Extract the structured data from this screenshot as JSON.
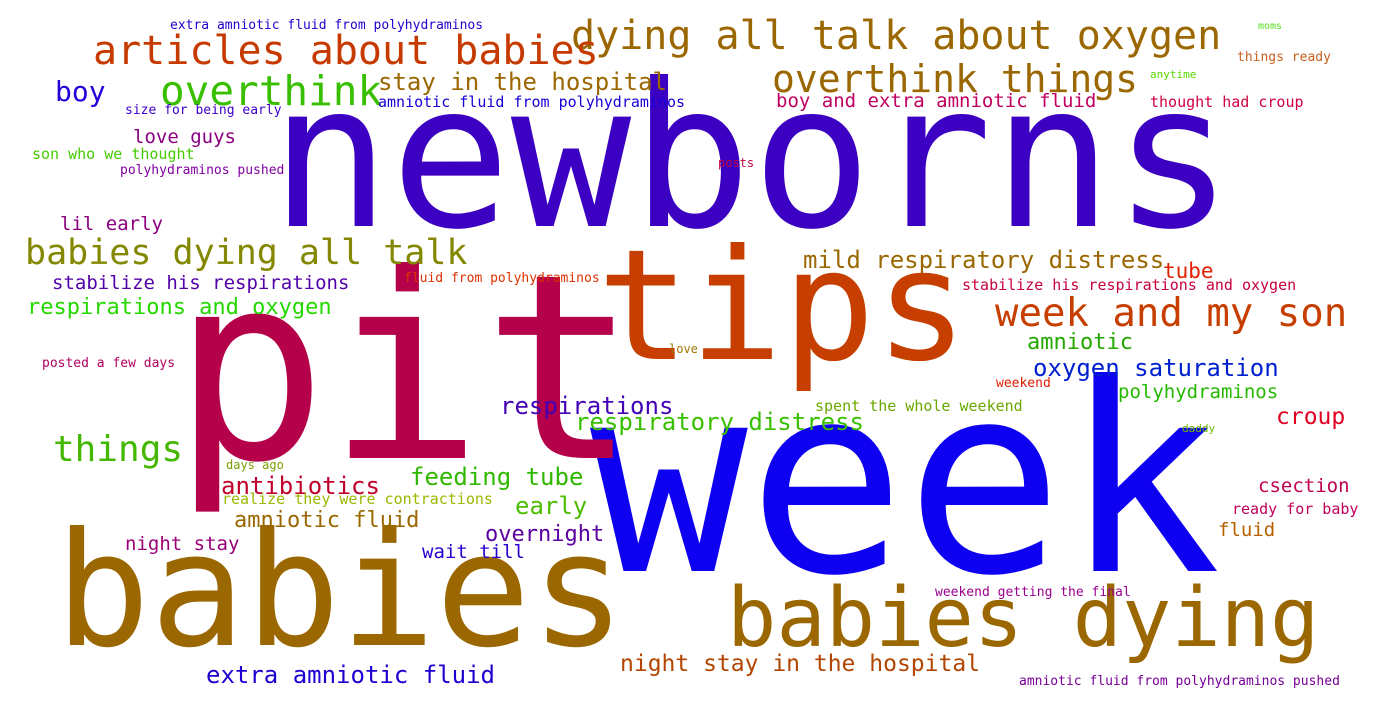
{
  "words": [
    {
      "text": "newborns",
      "color": "#3c00c3"
    },
    {
      "text": "week",
      "color": "#0e00f0"
    },
    {
      "text": "pit",
      "color": "#b5004a"
    },
    {
      "text": "tips",
      "color": "#c63f00"
    },
    {
      "text": "babies",
      "color": "#9a6700"
    },
    {
      "text": "babies dying",
      "color": "#9a6700"
    },
    {
      "text": "dying all talk about oxygen",
      "color": "#9a6700"
    },
    {
      "text": "articles about babies",
      "color": "#c63a00"
    },
    {
      "text": "overthink things",
      "color": "#9a6700"
    },
    {
      "text": "overthink",
      "color": "#38c000"
    },
    {
      "text": "week and my son",
      "color": "#c63f00"
    },
    {
      "text": "babies dying all talk",
      "color": "#838800"
    },
    {
      "text": "things",
      "color": "#44b800"
    },
    {
      "text": "boy",
      "color": "#2800d8"
    },
    {
      "text": "stay in the hospital",
      "color": "#9a6700"
    },
    {
      "text": "mild respiratory distress",
      "color": "#9a6700"
    },
    {
      "text": "respiratory distress",
      "color": "#38c000"
    },
    {
      "text": "respirations",
      "color": "#4200b8"
    },
    {
      "text": "oxygen saturation",
      "color": "#0020d0"
    },
    {
      "text": "feeding tube",
      "color": "#30b800"
    },
    {
      "text": "antibiotics",
      "color": "#c0002a"
    },
    {
      "text": "amniotic fluid",
      "color": "#9a6700"
    },
    {
      "text": "extra amniotic fluid",
      "color": "#1c00d0"
    },
    {
      "text": "night stay in the hospital",
      "color": "#b34500"
    },
    {
      "text": "respirations and oxygen",
      "color": "#24d800"
    },
    {
      "text": "stabilize his respirations",
      "color": "#5200a8"
    },
    {
      "text": "amniotic",
      "color": "#24a800"
    },
    {
      "text": "early",
      "color": "#4cbc00"
    },
    {
      "text": "overnight",
      "color": "#5c00a0"
    },
    {
      "text": "croup",
      "color": "#e00024"
    },
    {
      "text": "csection",
      "color": "#c00050"
    },
    {
      "text": "polyhydraminos",
      "color": "#24b800"
    },
    {
      "text": "tube",
      "color": "#e02000"
    },
    {
      "text": "night stay",
      "color": "#9a0078"
    },
    {
      "text": "wait till",
      "color": "#2a00d0"
    },
    {
      "text": "love guys",
      "color": "#8a0080"
    },
    {
      "text": "lil early",
      "color": "#8c0080"
    },
    {
      "text": "boy and extra amniotic fluid",
      "color": "#c00060"
    },
    {
      "text": "amniotic fluid from polyhydraminos",
      "color": "#1800d8"
    },
    {
      "text": "fluid",
      "color": "#b86000"
    },
    {
      "text": "son who we thought",
      "color": "#44cc00"
    },
    {
      "text": "thought had croup",
      "color": "#d00040"
    },
    {
      "text": "stabilize his respirations and oxygen",
      "color": "#c8003c"
    },
    {
      "text": "fluid from polyhydraminos",
      "color": "#dc3000"
    },
    {
      "text": "spent the whole weekend",
      "color": "#6aa800"
    },
    {
      "text": "ready for baby",
      "color": "#c0005a"
    },
    {
      "text": "realize they were contractions",
      "color": "#9cb800"
    },
    {
      "text": "weekend getting the final",
      "color": "#9a0090"
    },
    {
      "text": "amniotic fluid from polyhydraminos pushed",
      "color": "#780098"
    },
    {
      "text": "extra amniotic fluid from polyhydraminos",
      "color": "#2200d0"
    },
    {
      "text": "size for being early",
      "color": "#3c00c8"
    },
    {
      "text": "polyhydraminos pushed",
      "color": "#8000a0"
    },
    {
      "text": "posted a few days",
      "color": "#b00060"
    },
    {
      "text": "weekend",
      "color": "#e01c00"
    },
    {
      "text": "things ready",
      "color": "#c86020"
    },
    {
      "text": "anytime",
      "color": "#58d800"
    },
    {
      "text": "moms",
      "color": "#58e020"
    },
    {
      "text": "posts",
      "color": "#c00040"
    },
    {
      "text": "love",
      "color": "#a07800"
    },
    {
      "text": "days ago",
      "color": "#7aa000"
    },
    {
      "text": "daddy",
      "color": "#70b800"
    }
  ]
}
